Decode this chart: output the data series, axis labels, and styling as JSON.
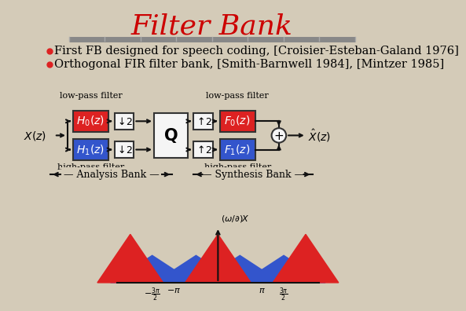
{
  "title": "Filter Bank",
  "title_color": "#cc0000",
  "title_fontsize": 26,
  "bg_color": "#d4cbb8",
  "bullet_text": [
    "First FB designed for speech coding, [Croisier-Esteban-Galand 1976]",
    "Orthogonal FIR filter bank, [Smith-Barnwell 1984], [Mintzer 1985]"
  ],
  "bullet_fontsize": 10.5,
  "red_color": "#dd2222",
  "blue_color": "#3355cc",
  "box_edge_color": "#333333",
  "line_color": "#111111",
  "separator_color": "#888888",
  "white_box": "#f5f5f5"
}
